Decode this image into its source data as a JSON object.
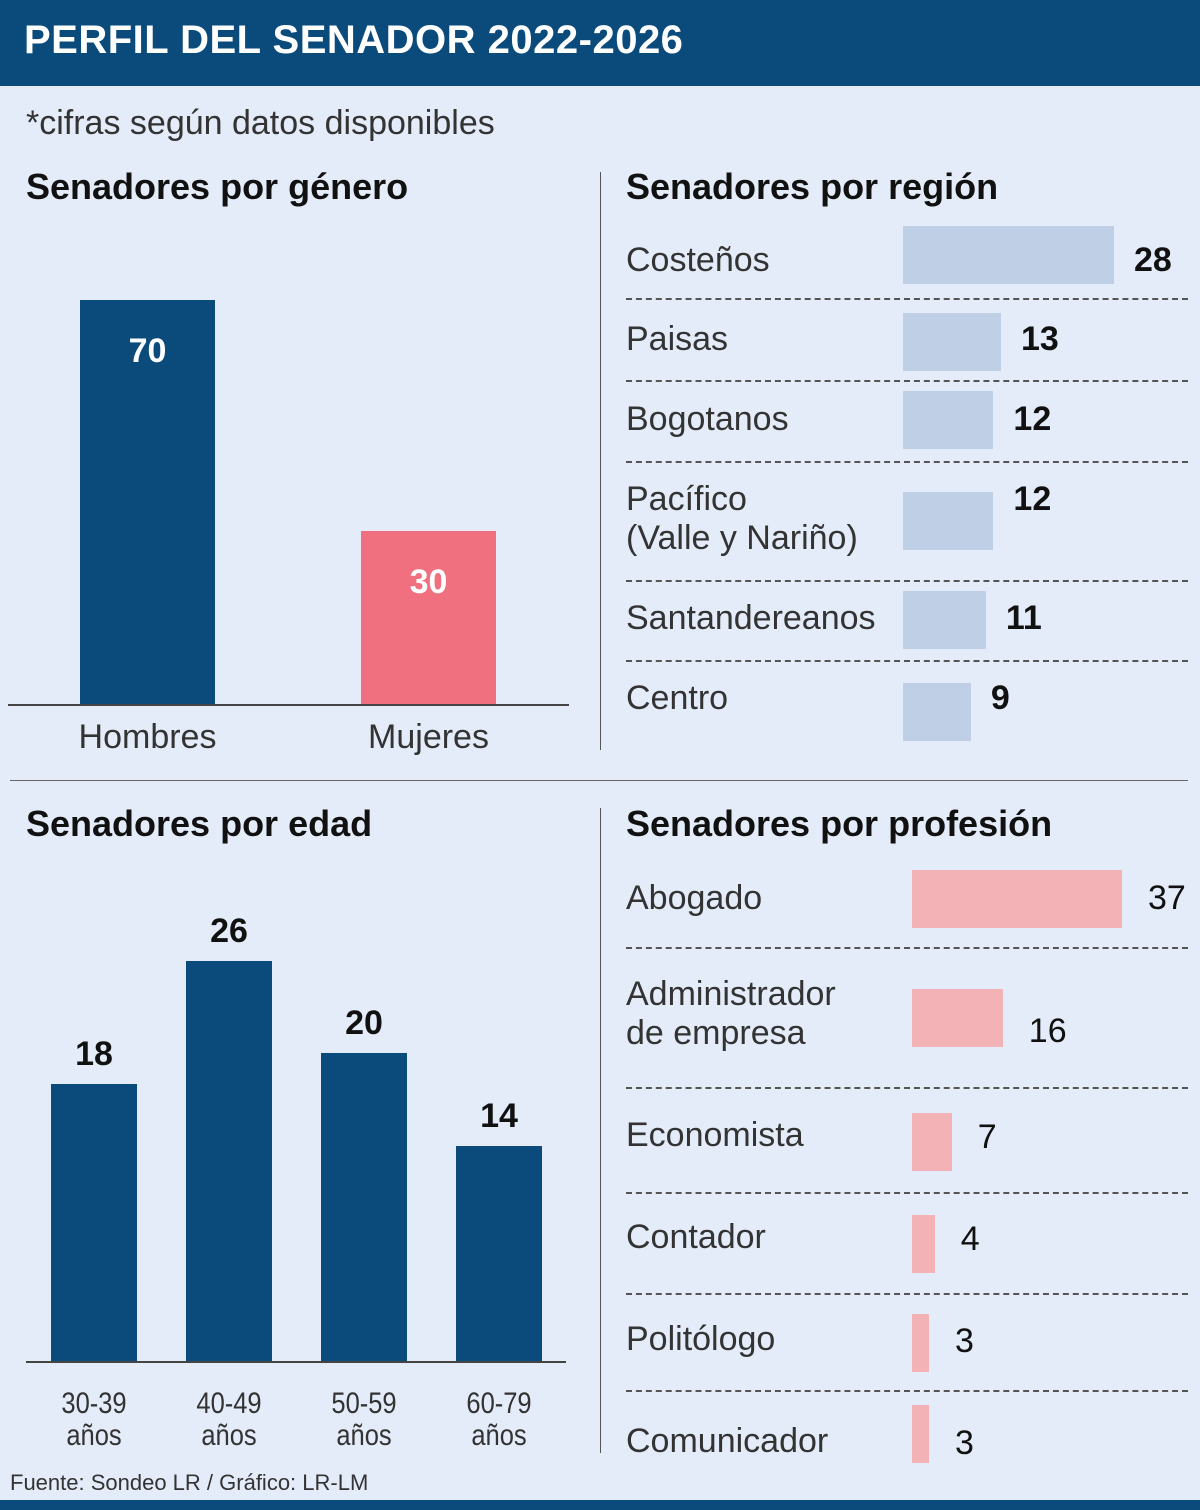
{
  "header": {
    "title": "PERFIL DEL SENADOR 2022-2026"
  },
  "note": "*cifras según datos disponibles",
  "source": "Fuente: Sondeo LR / Gráfico: LR-LM",
  "colors": {
    "header": "#0a4b7c",
    "navy_bar": "#0a4b7c",
    "women_bar": "#f07080",
    "region_bar": "#bfcfe6",
    "profession_bar": "#f2b2b6",
    "background": "#e3ecf8"
  },
  "chart_data": [
    {
      "type": "bar",
      "title": "Senadores por género",
      "categories": [
        "Hombres",
        "Mujeres"
      ],
      "values": [
        70,
        30
      ],
      "ylim": [
        0,
        70
      ]
    },
    {
      "type": "bar",
      "orientation": "horizontal",
      "title": "Senadores por región",
      "categories": [
        "Costeños",
        "Paisas",
        "Bogotanos",
        "Pacífico\n(Valle y Nariño)",
        "Santandereanos",
        "Centro"
      ],
      "values": [
        28,
        13,
        12,
        12,
        11,
        9
      ]
    },
    {
      "type": "bar",
      "title": "Senadores por edad",
      "categories": [
        "30-39\naños",
        "40-49\naños",
        "50-59\naños",
        "60-79\naños"
      ],
      "values": [
        18,
        26,
        20,
        14
      ]
    },
    {
      "type": "bar",
      "orientation": "horizontal",
      "title": "Senadores por profesión",
      "categories": [
        "Abogado",
        "Administrador\nde empresa",
        "Economista",
        "Contador",
        "Politólogo",
        "Comunicador"
      ],
      "values": [
        37,
        16,
        7,
        4,
        3,
        3
      ]
    }
  ]
}
